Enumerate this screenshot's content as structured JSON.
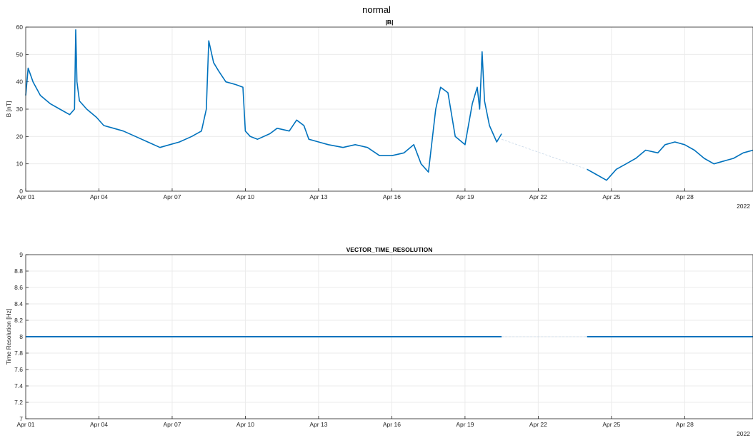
{
  "figure_title": "normal",
  "colors": {
    "series": "#0072BD",
    "grid": "#ebebeb",
    "axis": "#262626",
    "gap_line": "#c8d8e8"
  },
  "chart_data": [
    {
      "type": "line",
      "title": "|B|",
      "ylabel": "B [nT]",
      "xlabel": "",
      "ylim": [
        0,
        60
      ],
      "yticks": [
        "0",
        "10",
        "20",
        "30",
        "40",
        "50",
        "60"
      ],
      "xlim": [
        1,
        30.8
      ],
      "xticks": [
        {
          "day": 1,
          "label": "Apr 01"
        },
        {
          "day": 4,
          "label": "Apr 04"
        },
        {
          "day": 7,
          "label": "Apr 07"
        },
        {
          "day": 10,
          "label": "Apr 10"
        },
        {
          "day": 13,
          "label": "Apr 13"
        },
        {
          "day": 16,
          "label": "Apr 16"
        },
        {
          "day": 19,
          "label": "Apr 19"
        },
        {
          "day": 22,
          "label": "Apr 22"
        },
        {
          "day": 25,
          "label": "Apr 25"
        },
        {
          "day": 28,
          "label": "Apr 28"
        }
      ],
      "year_label": "2022",
      "grid": true,
      "series": [
        {
          "x": [
            1.0,
            1.1,
            1.3,
            1.6,
            2.0,
            2.4,
            2.8,
            3.0,
            3.05,
            3.1,
            3.2,
            3.5,
            3.9,
            4.2,
            4.6,
            5.0,
            5.5,
            6.0,
            6.5,
            6.9,
            7.3,
            7.8,
            8.2,
            8.4,
            8.5,
            8.7,
            8.9,
            9.2,
            9.6,
            9.9,
            10.0,
            10.2,
            10.5,
            11.0,
            11.3,
            11.8,
            12.1,
            12.4,
            12.6,
            13.0,
            13.4,
            14.0,
            14.5,
            15.0,
            15.5,
            16.0,
            16.5,
            16.9,
            17.2,
            17.5,
            17.8,
            18.0,
            18.3,
            18.6,
            19.0,
            19.3,
            19.5,
            19.6,
            19.7,
            19.8,
            20.0,
            20.3,
            20.5
          ],
          "y": [
            35,
            45,
            40,
            35,
            32,
            30,
            28,
            30,
            59,
            40,
            33,
            30,
            27,
            24,
            23,
            22,
            20,
            18,
            16,
            17,
            18,
            20,
            22,
            30,
            55,
            47,
            44,
            40,
            39,
            38,
            22,
            20,
            19,
            21,
            23,
            22,
            26,
            24,
            19,
            18,
            17,
            16,
            17,
            16,
            13,
            13,
            14,
            17,
            10,
            7,
            30,
            38,
            36,
            20,
            17,
            32,
            38,
            30,
            51,
            33,
            24,
            18,
            21
          ]
        },
        {
          "x": [
            20.5,
            24.0
          ],
          "y": [
            19,
            8
          ]
        },
        {
          "x": [
            24.0,
            24.4,
            24.8,
            25.2,
            25.6,
            26.0,
            26.4,
            26.9,
            27.2,
            27.6,
            28.0,
            28.4,
            28.8,
            29.2,
            29.6,
            30.0,
            30.4,
            30.8
          ],
          "y": [
            8,
            6,
            4,
            8,
            10,
            12,
            15,
            14,
            17,
            18,
            17,
            15,
            12,
            10,
            11,
            12,
            14,
            15
          ]
        }
      ]
    },
    {
      "type": "line",
      "title": "VECTOR_TIME_RESOLUTION",
      "ylabel": "Time Resolution [Hz]",
      "xlabel": "",
      "ylim": [
        7,
        9
      ],
      "yticks": [
        "7",
        "7.2",
        "7.4",
        "7.6",
        "7.8",
        "8",
        "8.2",
        "8.4",
        "8.6",
        "8.8",
        "9"
      ],
      "xlim": [
        1,
        30.8
      ],
      "xticks": [
        {
          "day": 1,
          "label": "Apr 01"
        },
        {
          "day": 4,
          "label": "Apr 04"
        },
        {
          "day": 7,
          "label": "Apr 07"
        },
        {
          "day": 10,
          "label": "Apr 10"
        },
        {
          "day": 13,
          "label": "Apr 13"
        },
        {
          "day": 16,
          "label": "Apr 16"
        },
        {
          "day": 19,
          "label": "Apr 19"
        },
        {
          "day": 22,
          "label": "Apr 22"
        },
        {
          "day": 25,
          "label": "Apr 25"
        },
        {
          "day": 28,
          "label": "Apr 28"
        }
      ],
      "year_label": "2022",
      "grid": true,
      "series": [
        {
          "x": [
            1.0,
            20.5
          ],
          "y": [
            8,
            8
          ]
        },
        {
          "x": [
            20.5,
            24.0
          ],
          "y": [
            8,
            8
          ]
        },
        {
          "x": [
            24.0,
            30.8
          ],
          "y": [
            8,
            8
          ]
        }
      ]
    }
  ]
}
